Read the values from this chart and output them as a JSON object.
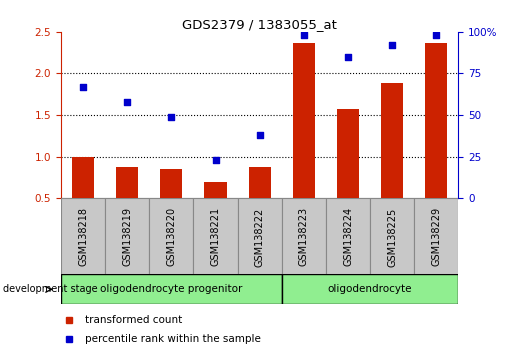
{
  "title": "GDS2379 / 1383055_at",
  "samples": [
    "GSM138218",
    "GSM138219",
    "GSM138220",
    "GSM138221",
    "GSM138222",
    "GSM138223",
    "GSM138224",
    "GSM138225",
    "GSM138229"
  ],
  "red_bars": [
    1.0,
    0.875,
    0.85,
    0.69,
    0.875,
    2.37,
    1.57,
    1.88,
    2.37
  ],
  "blue_dots_right_axis": [
    67,
    58,
    49,
    23,
    38,
    98,
    85,
    92,
    98
  ],
  "left_ylim": [
    0.5,
    2.5
  ],
  "right_ylim": [
    0,
    100
  ],
  "left_yticks": [
    0.5,
    1.0,
    1.5,
    2.0,
    2.5
  ],
  "right_yticks": [
    0,
    25,
    50,
    75,
    100
  ],
  "right_yticklabels": [
    "0",
    "25",
    "50",
    "75",
    "100%"
  ],
  "dotted_lines": [
    1.0,
    1.5,
    2.0
  ],
  "bar_color": "#cc2200",
  "dot_color": "#0000cc",
  "plot_bg_color": "#ffffff",
  "tick_area_bg": "#c8c8c8",
  "left_axis_color": "#cc2200",
  "right_axis_color": "#0000cc",
  "title_color": "#000000",
  "group1_label": "oligodendrocyte progenitor",
  "group1_count": 5,
  "group2_label": "oligodendrocyte",
  "group2_count": 4,
  "group_color": "#90ee90",
  "dev_stage_label": "development stage",
  "legend_red_label": "transformed count",
  "legend_blue_label": "percentile rank within the sample"
}
